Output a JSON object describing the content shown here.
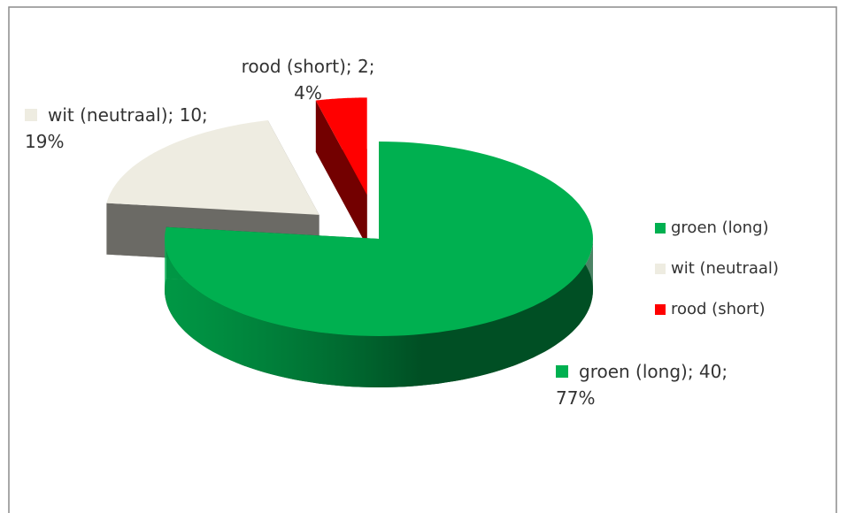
{
  "chart_data": {
    "type": "pie3d",
    "categories": [
      "groen (long)",
      "wit (neutraal)",
      "rood (short)"
    ],
    "values": [
      40,
      10,
      2
    ],
    "value_labels": [
      "groen (long); 40; 77%",
      "wit (neutraal); 10; 19%",
      "rood (short); 2; 4%"
    ],
    "colors": [
      "#00b050",
      "#eeece1",
      "#ff0000"
    ],
    "legend": "right"
  }
}
